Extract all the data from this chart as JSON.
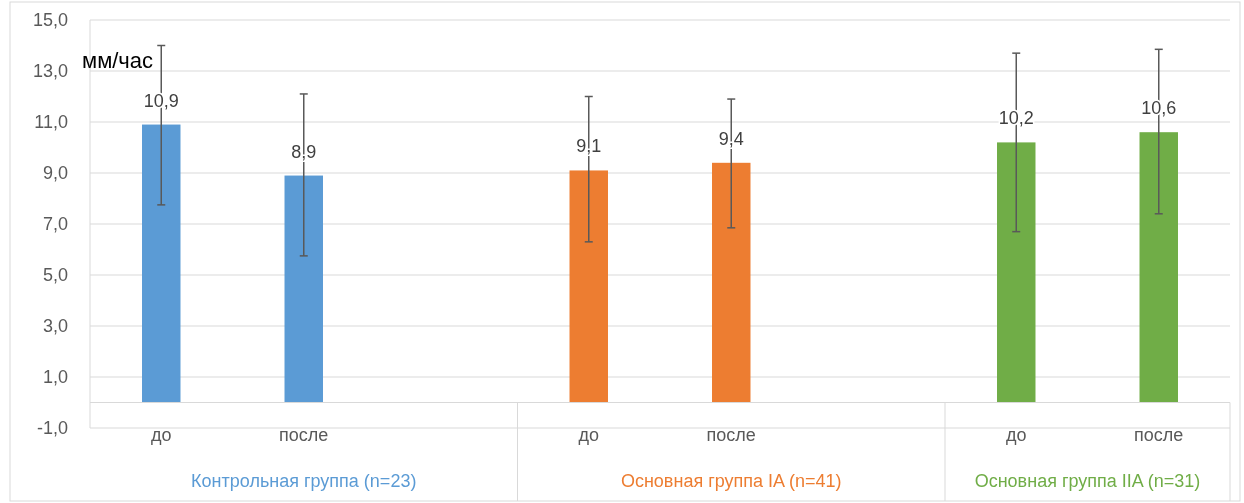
{
  "chart_data": {
    "type": "bar",
    "ylabel": "мм/час",
    "categories": [
      "до",
      "после",
      null,
      "до",
      "после",
      null,
      "до",
      "после"
    ],
    "series": [
      {
        "name": "Контрольная группа (n=23)",
        "color": "#5b9bd5",
        "values": [
          10.9,
          8.9,
          null,
          null,
          null,
          null,
          null,
          null
        ],
        "errors": [
          [
            7.75,
            14.0
          ],
          [
            5.75,
            12.1
          ],
          null,
          null,
          null,
          null,
          null,
          null
        ],
        "value_labels": [
          "10,9",
          "8,9",
          null,
          null,
          null,
          null,
          null,
          null
        ]
      },
      {
        "name": "Основная группа IA (n=41)",
        "color": "#ed7d31",
        "values": [
          null,
          null,
          null,
          9.1,
          9.4,
          null,
          null,
          null
        ],
        "errors": [
          null,
          null,
          null,
          [
            6.3,
            12.0
          ],
          [
            6.85,
            11.9
          ],
          null,
          null,
          null
        ],
        "value_labels": [
          null,
          null,
          null,
          "9,1",
          "9,4",
          null,
          null,
          null
        ]
      },
      {
        "name": "Основная группа IIA (n=31)",
        "color": "#70ad47",
        "values": [
          null,
          null,
          null,
          null,
          null,
          null,
          10.2,
          10.6
        ],
        "errors": [
          null,
          null,
          null,
          null,
          null,
          null,
          [
            6.7,
            13.7
          ],
          [
            7.4,
            13.85
          ]
        ],
        "value_labels": [
          null,
          null,
          null,
          null,
          null,
          null,
          "10,2",
          "10,6"
        ]
      }
    ],
    "ylim": [
      -1,
      15
    ],
    "yticks": [
      {
        "value": -1,
        "label": "-1,0"
      },
      {
        "value": 1,
        "label": "1,0"
      },
      {
        "value": 3,
        "label": "3,0"
      },
      {
        "value": 5,
        "label": "5,0"
      },
      {
        "value": 7,
        "label": "7,0"
      },
      {
        "value": 9,
        "label": "9,0"
      },
      {
        "value": 11,
        "label": "11,0"
      },
      {
        "value": 13,
        "label": "13,0"
      },
      {
        "value": 15,
        "label": "15,0"
      }
    ],
    "grid": "y",
    "legend": false
  }
}
